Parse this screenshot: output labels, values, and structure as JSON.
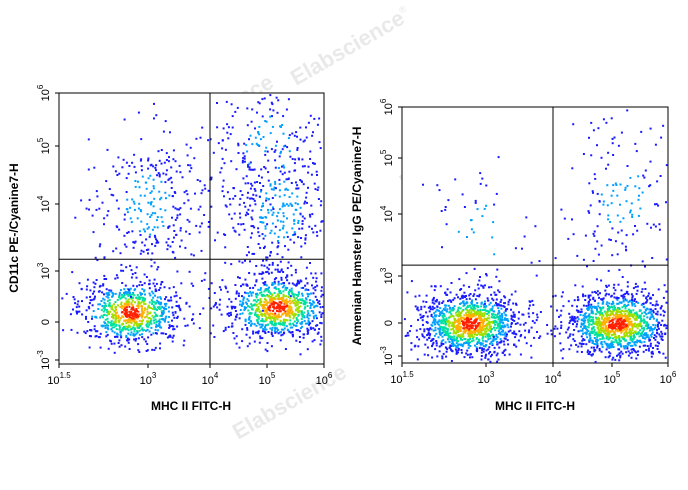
{
  "watermark": {
    "text": "Elabscience",
    "mark": "®"
  },
  "chart_data": [
    {
      "type": "scatter",
      "style": "flow-cytometry pseudocolor density dot plot",
      "xlabel": "MHC II FITC-H",
      "ylabel": "CD11c PE-/Cyanine7-H",
      "x_scale": "biexponential",
      "y_scale": "biexponential",
      "x_ticks": [
        {
          "base": "10",
          "exp": "1.5"
        },
        {
          "base": "10",
          "exp": "3"
        },
        {
          "base": "10",
          "exp": "4"
        },
        {
          "base": "10",
          "exp": "5"
        },
        {
          "base": "10",
          "exp": "6"
        }
      ],
      "y_ticks": [
        {
          "base": "10",
          "exp": "-3"
        },
        {
          "base": "0",
          "exp": ""
        },
        {
          "base": "10",
          "exp": "3"
        },
        {
          "base": "10",
          "exp": "4"
        },
        {
          "base": "10",
          "exp": "5"
        },
        {
          "base": "10",
          "exp": "6"
        }
      ],
      "gate": {
        "x": 10000,
        "y": 1500
      },
      "populations": [
        {
          "x_center": 500,
          "y_center": 200,
          "weight": 0.3
        },
        {
          "x_center": 150000,
          "y_center": 300,
          "weight": 0.34
        },
        {
          "x_center": 150000,
          "y_center": 8000,
          "weight": 0.14
        },
        {
          "x_center": 1000,
          "y_center": 10000,
          "weight": 0.12
        },
        {
          "x_center": 100000,
          "y_center": 100000,
          "weight": 0.06
        }
      ],
      "density_colors": [
        "#1a1aff",
        "#00a0ff",
        "#00e0a0",
        "#a0e000",
        "#ffb000",
        "#ff2000"
      ]
    },
    {
      "type": "scatter",
      "style": "flow-cytometry pseudocolor density dot plot",
      "xlabel": "MHC II FITC-H",
      "ylabel": "Armenian Hamster IgG PE/Cyanine7-H",
      "x_scale": "biexponential",
      "y_scale": "biexponential",
      "x_ticks": [
        {
          "base": "10",
          "exp": "1.5"
        },
        {
          "base": "10",
          "exp": "3"
        },
        {
          "base": "10",
          "exp": "4"
        },
        {
          "base": "10",
          "exp": "5"
        },
        {
          "base": "10",
          "exp": "6"
        }
      ],
      "y_ticks": [
        {
          "base": "10",
          "exp": "-3"
        },
        {
          "base": "0",
          "exp": ""
        },
        {
          "base": "10",
          "exp": "3"
        },
        {
          "base": "10",
          "exp": "4"
        },
        {
          "base": "10",
          "exp": "5"
        },
        {
          "base": "10",
          "exp": "6"
        }
      ],
      "gate": {
        "x": 10000,
        "y": 1500
      },
      "populations": [
        {
          "x_center": 500,
          "y_center": 0,
          "weight": 0.46
        },
        {
          "x_center": 120000,
          "y_center": 0,
          "weight": 0.46
        },
        {
          "x_center": 150000,
          "y_center": 20000,
          "weight": 0.06
        },
        {
          "x_center": 800,
          "y_center": 5000,
          "weight": 0.02
        }
      ],
      "density_colors": [
        "#1a1aff",
        "#00a0ff",
        "#00e0a0",
        "#a0e000",
        "#ffb000",
        "#ff2000"
      ]
    }
  ]
}
